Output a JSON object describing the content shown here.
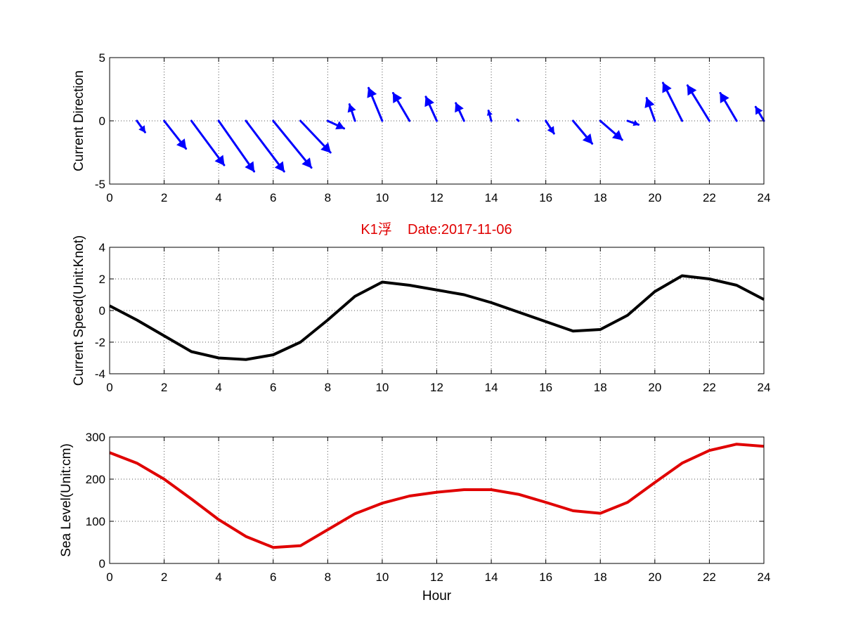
{
  "title": "K1浮    Date:2017-11-06",
  "colors": {
    "arrows": "#0000ff",
    "speed_line": "#000000",
    "sea_level_line": "#e00000",
    "title": "#e00000"
  },
  "chart_data": [
    {
      "type": "quiver",
      "ylabel": "Current Direction",
      "xlabel": "",
      "xlim": [
        0,
        24
      ],
      "ylim": [
        -5,
        5
      ],
      "xticks": [
        0,
        2,
        4,
        6,
        8,
        10,
        12,
        14,
        16,
        18,
        20,
        22,
        24
      ],
      "yticks": [
        -5,
        0,
        5
      ],
      "grid": true,
      "arrows": [
        {
          "x": 1,
          "u": 0.3,
          "v": -0.9
        },
        {
          "x": 2,
          "u": 0.8,
          "v": -2.2
        },
        {
          "x": 3,
          "u": 1.2,
          "v": -3.5
        },
        {
          "x": 4,
          "u": 1.3,
          "v": -4.0
        },
        {
          "x": 5,
          "u": 1.4,
          "v": -4.0
        },
        {
          "x": 6,
          "u": 1.4,
          "v": -3.7
        },
        {
          "x": 7,
          "u": 1.1,
          "v": -2.5
        },
        {
          "x": 8,
          "u": 0.6,
          "v": -0.6
        },
        {
          "x": 9,
          "u": -0.2,
          "v": 1.3
        },
        {
          "x": 10,
          "u": -0.5,
          "v": 2.6
        },
        {
          "x": 11,
          "u": -0.6,
          "v": 2.2
        },
        {
          "x": 12,
          "u": -0.4,
          "v": 1.9
        },
        {
          "x": 13,
          "u": -0.3,
          "v": 1.4
        },
        {
          "x": 14,
          "u": -0.1,
          "v": 0.8
        },
        {
          "x": 15,
          "u": -0.05,
          "v": 0.1
        },
        {
          "x": 16,
          "u": 0.3,
          "v": -1.0
        },
        {
          "x": 17,
          "u": 0.7,
          "v": -1.8
        },
        {
          "x": 18,
          "u": 0.8,
          "v": -1.5
        },
        {
          "x": 19,
          "u": 0.4,
          "v": -0.3
        },
        {
          "x": 20,
          "u": -0.3,
          "v": 1.8
        },
        {
          "x": 21,
          "u": -0.7,
          "v": 3.0
        },
        {
          "x": 22,
          "u": -0.8,
          "v": 2.8
        },
        {
          "x": 23,
          "u": -0.6,
          "v": 2.2
        },
        {
          "x": 24,
          "u": -0.3,
          "v": 1.1
        }
      ]
    },
    {
      "type": "line",
      "ylabel": "Current Speed(Unit:Knot)",
      "xlabel": "",
      "xlim": [
        0,
        24
      ],
      "ylim": [
        -4,
        4
      ],
      "xticks": [
        0,
        2,
        4,
        6,
        8,
        10,
        12,
        14,
        16,
        18,
        20,
        22,
        24
      ],
      "yticks": [
        -4,
        -2,
        0,
        2,
        4
      ],
      "grid": true,
      "x": [
        0,
        1,
        2,
        3,
        4,
        5,
        6,
        7,
        8,
        9,
        10,
        11,
        12,
        13,
        14,
        15,
        16,
        17,
        18,
        19,
        20,
        21,
        22,
        23,
        24
      ],
      "y": [
        0.3,
        -0.6,
        -1.6,
        -2.6,
        -3.0,
        -3.1,
        -2.8,
        -2.0,
        -0.6,
        0.9,
        1.8,
        1.6,
        1.3,
        1.0,
        0.5,
        -0.1,
        -0.7,
        -1.3,
        -1.2,
        -0.3,
        1.2,
        2.2,
        2.0,
        1.6,
        0.7
      ]
    },
    {
      "type": "line",
      "ylabel": "Sea Level(Unit:cm)",
      "xlabel": "Hour",
      "xlim": [
        0,
        24
      ],
      "ylim": [
        0,
        300
      ],
      "xticks": [
        0,
        2,
        4,
        6,
        8,
        10,
        12,
        14,
        16,
        18,
        20,
        22,
        24
      ],
      "yticks": [
        0,
        100,
        200,
        300
      ],
      "grid": true,
      "x": [
        0,
        1,
        2,
        3,
        4,
        5,
        6,
        7,
        8,
        9,
        10,
        11,
        12,
        13,
        14,
        15,
        16,
        17,
        18,
        19,
        20,
        21,
        22,
        23,
        24
      ],
      "y": [
        263,
        238,
        200,
        153,
        104,
        64,
        38,
        42,
        80,
        118,
        143,
        160,
        169,
        175,
        175,
        164,
        145,
        125,
        119,
        145,
        192,
        238,
        268,
        283,
        278
      ]
    }
  ]
}
